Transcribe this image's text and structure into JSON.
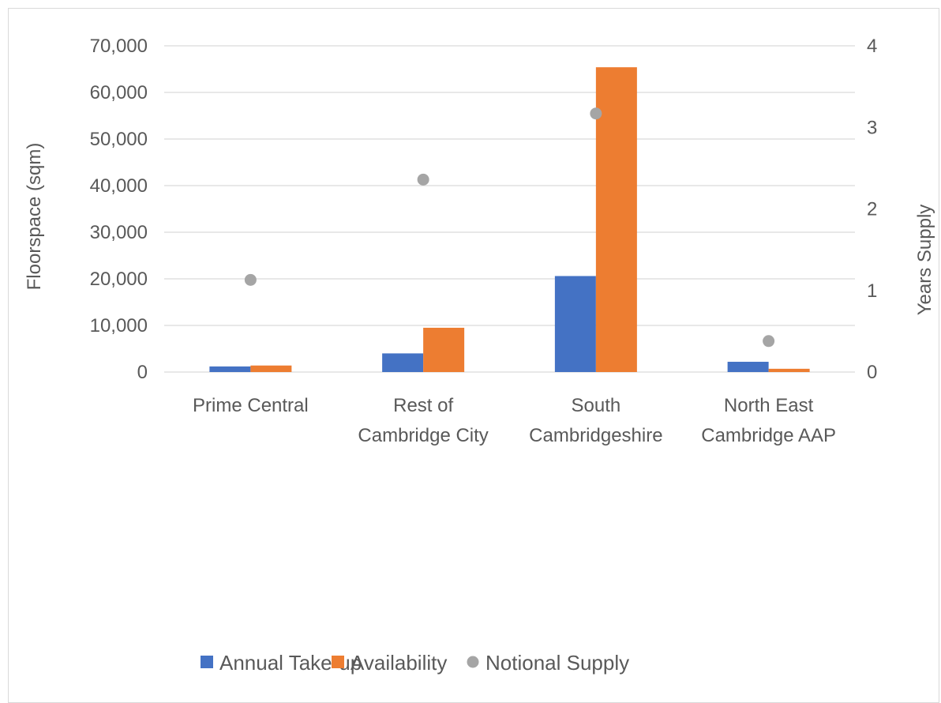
{
  "chart_data": {
    "type": "bar",
    "categories": [
      [
        "Prime Central"
      ],
      [
        "Rest of",
        "Cambridge City"
      ],
      [
        "South",
        "Cambridgeshire"
      ],
      [
        "North East",
        "Cambridge AAP"
      ]
    ],
    "series": [
      {
        "name": "Annual Take-up",
        "kind": "bar",
        "axis": "left",
        "color": "#4472c4",
        "values": [
          1200,
          4000,
          20600,
          2200
        ]
      },
      {
        "name": "Availability",
        "kind": "bar",
        "axis": "left",
        "color": "#ed7d31",
        "values": [
          1400,
          9500,
          65400,
          700
        ]
      },
      {
        "name": "Notional Supply",
        "kind": "scatter",
        "axis": "right",
        "color": "#a5a5a5",
        "values": [
          1.13,
          2.36,
          3.17,
          0.38
        ]
      }
    ],
    "ylabel": "Floorspace (sqm)",
    "y2label": "Years Supply",
    "ylim": [
      0,
      70000
    ],
    "y2lim": [
      0,
      4
    ],
    "yticks": [
      "0",
      "10,000",
      "20,000",
      "30,000",
      "40,000",
      "50,000",
      "60,000",
      "70,000"
    ],
    "y2ticks": [
      "0",
      "1",
      "2",
      "3",
      "4"
    ],
    "grid": true,
    "legend_position": "bottom"
  }
}
